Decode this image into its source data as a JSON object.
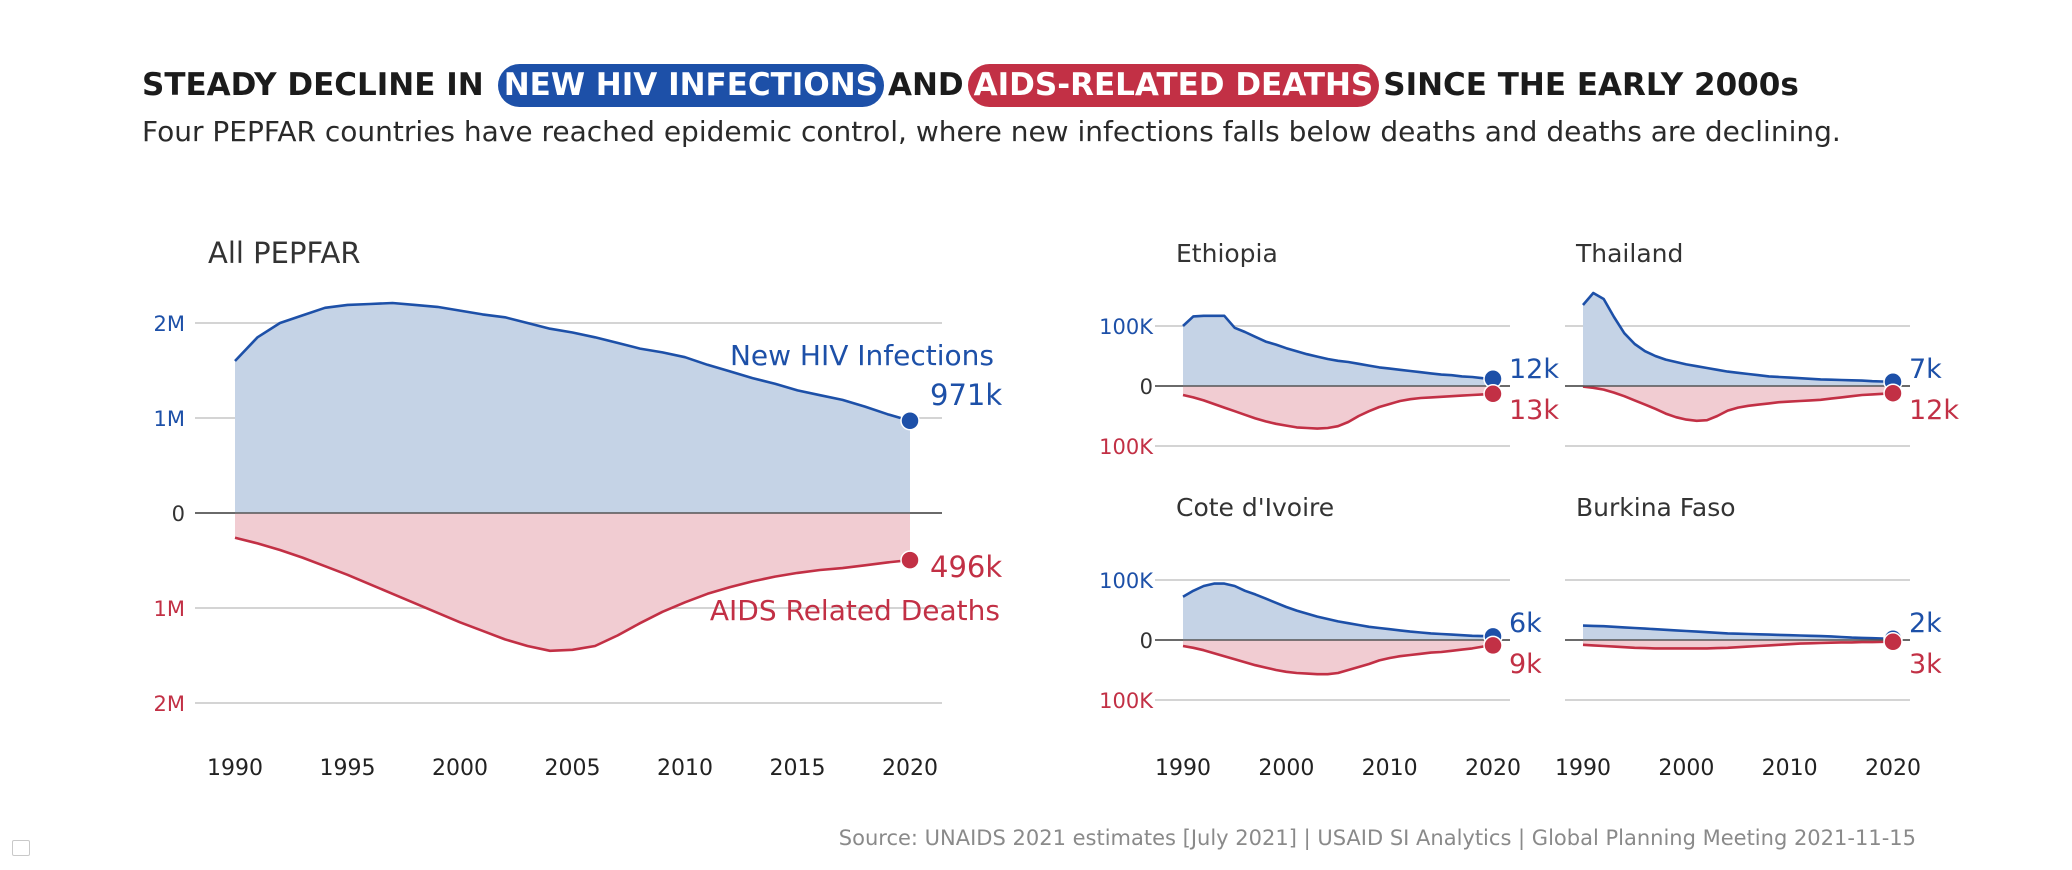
{
  "title": {
    "part1": "STEADY DECLINE IN",
    "highlight_infections": "NEW HIV INFECTIONS",
    "part2": "AND",
    "highlight_deaths": "AIDS-RELATED DEATHS",
    "part3": "SINCE THE EARLY 2000s"
  },
  "subtitle": "Four PEPFAR countries have reached epidemic control, where new infections falls below deaths and deaths are declining.",
  "source": "Source: UNAIDS 2021 estimates [July 2021] | USAID SI Analytics | Global Planning Meeting 2021-11-15",
  "colors": {
    "infections_line": "#1d50a8",
    "infections_fill": "#c5d3e6",
    "deaths_line": "#c23045",
    "deaths_fill": "#f1ccd2",
    "grid": "#d4d4d4",
    "zero_line": "#555555"
  },
  "chart_data": [
    {
      "type": "area",
      "title": "All PEPFAR",
      "x_ticks": [
        "1990",
        "1995",
        "2000",
        "2005",
        "2010",
        "2015",
        "2020"
      ],
      "y_ticks": [
        {
          "value": 2000000,
          "label": "2M",
          "side": "infections"
        },
        {
          "value": 1000000,
          "label": "1M",
          "side": "infections"
        },
        {
          "value": 0,
          "label": "0",
          "side": "zero"
        },
        {
          "value": -1000000,
          "label": "1M",
          "side": "deaths"
        },
        {
          "value": -2000000,
          "label": "2M",
          "side": "deaths"
        }
      ],
      "ylim": [
        -2000000,
        2000000
      ],
      "xlim": [
        1990,
        2020
      ],
      "series": [
        {
          "name": "New HIV Infections",
          "x": [
            1990,
            1991,
            1992,
            1993,
            1994,
            1995,
            1996,
            1997,
            1998,
            1999,
            2000,
            2001,
            2002,
            2003,
            2004,
            2005,
            2006,
            2007,
            2008,
            2009,
            2010,
            2011,
            2012,
            2013,
            2014,
            2015,
            2016,
            2017,
            2018,
            2019,
            2020
          ],
          "values": [
            1600000,
            1850000,
            2000000,
            2080000,
            2160000,
            2190000,
            2200000,
            2210000,
            2190000,
            2170000,
            2130000,
            2090000,
            2060000,
            2000000,
            1940000,
            1900000,
            1850000,
            1790000,
            1730000,
            1690000,
            1640000,
            1560000,
            1490000,
            1420000,
            1360000,
            1290000,
            1240000,
            1190000,
            1120000,
            1040000,
            971000
          ],
          "end_label": "971k"
        },
        {
          "name": "AIDS Related Deaths",
          "x": [
            1990,
            1991,
            1992,
            1993,
            1994,
            1995,
            1996,
            1997,
            1998,
            1999,
            2000,
            2001,
            2002,
            2003,
            2004,
            2005,
            2006,
            2007,
            2008,
            2009,
            2010,
            2011,
            2012,
            2013,
            2014,
            2015,
            2016,
            2017,
            2018,
            2019,
            2020
          ],
          "values": [
            -260000,
            -320000,
            -390000,
            -470000,
            -560000,
            -650000,
            -750000,
            -850000,
            -950000,
            -1050000,
            -1150000,
            -1240000,
            -1330000,
            -1400000,
            -1450000,
            -1440000,
            -1400000,
            -1290000,
            -1160000,
            -1040000,
            -940000,
            -850000,
            -780000,
            -720000,
            -670000,
            -630000,
            -600000,
            -580000,
            -550000,
            -520000,
            -496000
          ],
          "end_label": "496k"
        }
      ]
    },
    {
      "type": "area",
      "title": "Ethiopia",
      "x_ticks": [
        "1990",
        "2000",
        "2010",
        "2020"
      ],
      "y_ticks": [
        {
          "value": 100000,
          "label": "100K",
          "side": "infections"
        },
        {
          "value": 0,
          "label": "0",
          "side": "zero"
        },
        {
          "value": -100000,
          "label": "100K",
          "side": "deaths"
        }
      ],
      "ylim": [
        -100000,
        100000
      ],
      "xlim": [
        1990,
        2020
      ],
      "series": [
        {
          "name": "New HIV Infections",
          "x": [
            1990,
            1991,
            1992,
            1993,
            1994,
            1995,
            1996,
            1997,
            1998,
            1999,
            2000,
            2001,
            2002,
            2003,
            2004,
            2005,
            2006,
            2007,
            2008,
            2009,
            2010,
            2011,
            2012,
            2013,
            2014,
            2015,
            2016,
            2017,
            2018,
            2019,
            2020
          ],
          "values": [
            100000,
            116000,
            117000,
            117000,
            117000,
            97000,
            90000,
            82000,
            74000,
            69000,
            63000,
            58000,
            53000,
            49000,
            45000,
            42000,
            40000,
            37000,
            34000,
            31000,
            29000,
            27000,
            25000,
            23000,
            21000,
            19000,
            18000,
            16000,
            15000,
            13000,
            12000
          ],
          "end_label": "12k"
        },
        {
          "name": "AIDS Related Deaths",
          "x": [
            1990,
            1991,
            1992,
            1993,
            1994,
            1995,
            1996,
            1997,
            1998,
            1999,
            2000,
            2001,
            2002,
            2003,
            2004,
            2005,
            2006,
            2007,
            2008,
            2009,
            2010,
            2011,
            2012,
            2013,
            2014,
            2015,
            2016,
            2017,
            2018,
            2019,
            2020
          ],
          "values": [
            -15000,
            -19000,
            -24000,
            -30000,
            -36000,
            -42000,
            -48000,
            -54000,
            -59000,
            -63000,
            -66000,
            -69000,
            -70000,
            -71000,
            -70000,
            -67000,
            -60000,
            -50000,
            -42000,
            -35000,
            -30000,
            -25000,
            -22000,
            -20000,
            -19000,
            -18000,
            -17000,
            -16000,
            -15000,
            -14000,
            -13000
          ],
          "end_label": "13k"
        }
      ]
    },
    {
      "type": "area",
      "title": "Thailand",
      "x_ticks": [
        "1990",
        "2000",
        "2010",
        "2020"
      ],
      "y_ticks": [
        {
          "value": 100000,
          "label": "",
          "side": "infections"
        },
        {
          "value": 0,
          "label": "",
          "side": "zero"
        },
        {
          "value": -100000,
          "label": "",
          "side": "deaths"
        }
      ],
      "ylim": [
        -100000,
        100000
      ],
      "xlim": [
        1990,
        2020
      ],
      "series": [
        {
          "name": "New HIV Infections",
          "x": [
            1990,
            1991,
            1992,
            1993,
            1994,
            1995,
            1996,
            1997,
            1998,
            1999,
            2000,
            2001,
            2002,
            2003,
            2004,
            2005,
            2006,
            2007,
            2008,
            2009,
            2010,
            2011,
            2012,
            2013,
            2014,
            2015,
            2016,
            2017,
            2018,
            2019,
            2020
          ],
          "values": [
            135000,
            155000,
            145000,
            115000,
            88000,
            70000,
            58000,
            50000,
            44000,
            40000,
            36000,
            33000,
            30000,
            27000,
            24000,
            22000,
            20000,
            18000,
            16000,
            15000,
            14000,
            13000,
            12000,
            11000,
            10500,
            10000,
            9500,
            9000,
            8000,
            7500,
            7000
          ],
          "end_label": "7k"
        },
        {
          "name": "AIDS Related Deaths",
          "x": [
            1990,
            1991,
            1992,
            1993,
            1994,
            1995,
            1996,
            1997,
            1998,
            1999,
            2000,
            2001,
            2002,
            2003,
            2004,
            2005,
            2006,
            2007,
            2008,
            2009,
            2010,
            2011,
            2012,
            2013,
            2014,
            2015,
            2016,
            2017,
            2018,
            2019,
            2020
          ],
          "values": [
            -1000,
            -3000,
            -6000,
            -11000,
            -17000,
            -24000,
            -31000,
            -38000,
            -46000,
            -52000,
            -56000,
            -58000,
            -57000,
            -50000,
            -41000,
            -36000,
            -33000,
            -31000,
            -29000,
            -27000,
            -26000,
            -25000,
            -24000,
            -23000,
            -21000,
            -19000,
            -17000,
            -15000,
            -14000,
            -13000,
            -12000
          ],
          "end_label": "12k"
        }
      ]
    },
    {
      "type": "area",
      "title": "Cote d'Ivoire",
      "x_ticks": [
        "1990",
        "2000",
        "2010",
        "2020"
      ],
      "y_ticks": [
        {
          "value": 100000,
          "label": "100K",
          "side": "infections"
        },
        {
          "value": 0,
          "label": "0",
          "side": "zero"
        },
        {
          "value": -100000,
          "label": "100K",
          "side": "deaths"
        }
      ],
      "ylim": [
        -100000,
        100000
      ],
      "xlim": [
        1990,
        2020
      ],
      "series": [
        {
          "name": "New HIV Infections",
          "x": [
            1990,
            1991,
            1992,
            1993,
            1994,
            1995,
            1996,
            1997,
            1998,
            1999,
            2000,
            2001,
            2002,
            2003,
            2004,
            2005,
            2006,
            2007,
            2008,
            2009,
            2010,
            2011,
            2012,
            2013,
            2014,
            2015,
            2016,
            2017,
            2018,
            2019,
            2020
          ],
          "values": [
            72000,
            82000,
            90000,
            94000,
            94000,
            90000,
            82000,
            76000,
            69000,
            62000,
            55000,
            49000,
            44000,
            39000,
            35000,
            31000,
            28000,
            25000,
            22000,
            20000,
            18000,
            16000,
            14000,
            12500,
            11000,
            10000,
            9000,
            8000,
            7000,
            6500,
            6000
          ],
          "end_label": "6k"
        },
        {
          "name": "AIDS Related Deaths",
          "x": [
            1990,
            1991,
            1992,
            1993,
            1994,
            1995,
            1996,
            1997,
            1998,
            1999,
            2000,
            2001,
            2002,
            2003,
            2004,
            2005,
            2006,
            2007,
            2008,
            2009,
            2010,
            2011,
            2012,
            2013,
            2014,
            2015,
            2016,
            2017,
            2018,
            2019,
            2020
          ],
          "values": [
            -10000,
            -13000,
            -17000,
            -22000,
            -27000,
            -32000,
            -37000,
            -42000,
            -46000,
            -50000,
            -53000,
            -55000,
            -56000,
            -57000,
            -57000,
            -55000,
            -50000,
            -45000,
            -40000,
            -34000,
            -30000,
            -27000,
            -25000,
            -23000,
            -21000,
            -20000,
            -18000,
            -16000,
            -14000,
            -11000,
            -9000
          ],
          "end_label": "9k"
        }
      ]
    },
    {
      "type": "area",
      "title": "Burkina Faso",
      "x_ticks": [
        "1990",
        "2000",
        "2010",
        "2020"
      ],
      "y_ticks": [
        {
          "value": 100000,
          "label": "",
          "side": "infections"
        },
        {
          "value": 0,
          "label": "",
          "side": "zero"
        },
        {
          "value": -100000,
          "label": "",
          "side": "deaths"
        }
      ],
      "ylim": [
        -100000,
        100000
      ],
      "xlim": [
        1990,
        2020
      ],
      "series": [
        {
          "name": "New HIV Infections",
          "x": [
            1990,
            1991,
            1992,
            1993,
            1994,
            1995,
            1996,
            1997,
            1998,
            1999,
            2000,
            2001,
            2002,
            2003,
            2004,
            2005,
            2006,
            2007,
            2008,
            2009,
            2010,
            2011,
            2012,
            2013,
            2014,
            2015,
            2016,
            2017,
            2018,
            2019,
            2020
          ],
          "values": [
            24000,
            23500,
            23000,
            22000,
            21000,
            20000,
            19000,
            18000,
            17000,
            16000,
            15000,
            14000,
            13000,
            12000,
            11000,
            10500,
            10000,
            9500,
            9000,
            8500,
            8000,
            7500,
            7000,
            6500,
            6000,
            5000,
            4000,
            3500,
            3000,
            2500,
            2000
          ],
          "end_label": "2k"
        },
        {
          "name": "AIDS Related Deaths",
          "x": [
            1990,
            1991,
            1992,
            1993,
            1994,
            1995,
            1996,
            1997,
            1998,
            1999,
            2000,
            2001,
            2002,
            2003,
            2004,
            2005,
            2006,
            2007,
            2008,
            2009,
            2010,
            2011,
            2012,
            2013,
            2014,
            2015,
            2016,
            2017,
            2018,
            2019,
            2020
          ],
          "values": [
            -8000,
            -9000,
            -10000,
            -11000,
            -12000,
            -13000,
            -13500,
            -14000,
            -14000,
            -14000,
            -14000,
            -14000,
            -14000,
            -13500,
            -13000,
            -12000,
            -11000,
            -10000,
            -9000,
            -8000,
            -7000,
            -6000,
            -5500,
            -5000,
            -4500,
            -4000,
            -4000,
            -3500,
            -3500,
            -3000,
            -3000
          ],
          "end_label": "3k"
        }
      ]
    }
  ]
}
